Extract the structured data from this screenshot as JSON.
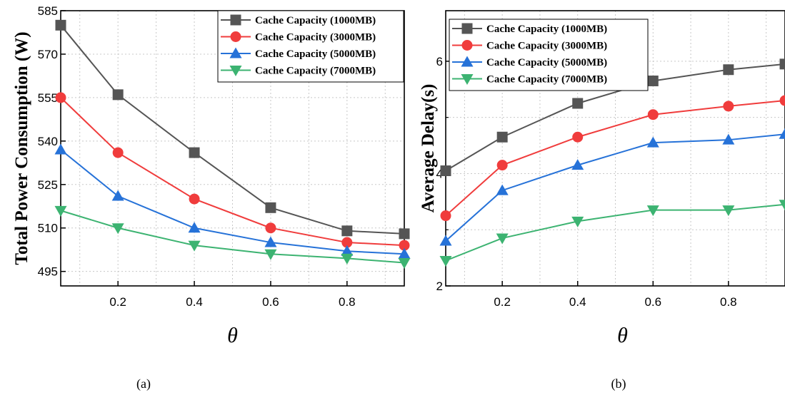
{
  "colors": {
    "s1000": "#555555",
    "s3000": "#f03c3c",
    "s5000": "#2672d8",
    "s7000": "#3cb371"
  },
  "chart_data": [
    {
      "type": "line",
      "caption": "(a)",
      "xlabel": "θ",
      "ylabel": "Total Power Consumption (W)",
      "xlim": [
        0.05,
        0.95
      ],
      "ylim": [
        490,
        585
      ],
      "xticks": [
        0.2,
        0.4,
        0.6,
        0.8
      ],
      "yticks": [
        495,
        510,
        525,
        540,
        555,
        570,
        585
      ],
      "x": [
        0.05,
        0.2,
        0.4,
        0.6,
        0.8,
        0.95
      ],
      "grid": true,
      "legend_position": "top-right",
      "series": [
        {
          "name": "Cache Capacity (1000MB)",
          "marker": "square",
          "color": "#555555",
          "values": [
            580,
            556,
            536,
            517,
            509,
            508
          ]
        },
        {
          "name": "Cache Capacity (3000MB)",
          "marker": "circle",
          "color": "#f03c3c",
          "values": [
            555,
            536,
            520,
            510,
            505,
            504
          ]
        },
        {
          "name": "Cache Capacity (5000MB)",
          "marker": "triangle-up",
          "color": "#2672d8",
          "values": [
            537,
            521,
            510,
            505,
            502,
            501
          ]
        },
        {
          "name": "Cache Capacity (7000MB)",
          "marker": "triangle-down",
          "color": "#3cb371",
          "values": [
            516,
            510,
            504,
            501,
            499.5,
            498
          ]
        }
      ]
    },
    {
      "type": "line",
      "caption": "(b)",
      "xlabel": "θ",
      "ylabel": "Average Delay(s)",
      "xlim": [
        0.05,
        0.95
      ],
      "ylim": [
        2,
        6.9
      ],
      "xticks": [
        0.2,
        0.4,
        0.6,
        0.8
      ],
      "yticks": [
        2,
        4,
        6
      ],
      "minor_yticks": [
        3,
        5
      ],
      "x": [
        0.05,
        0.2,
        0.4,
        0.6,
        0.8,
        0.95
      ],
      "grid": true,
      "legend_position": "top-left",
      "series": [
        {
          "name": "Cache Capacity (1000MB)",
          "marker": "square",
          "color": "#555555",
          "values": [
            4.05,
            4.65,
            5.25,
            5.65,
            5.85,
            5.95
          ]
        },
        {
          "name": "Cache Capacity (3000MB)",
          "marker": "circle",
          "color": "#f03c3c",
          "values": [
            3.25,
            4.15,
            4.65,
            5.05,
            5.2,
            5.3
          ]
        },
        {
          "name": "Cache Capacity (5000MB)",
          "marker": "triangle-up",
          "color": "#2672d8",
          "values": [
            2.8,
            3.7,
            4.15,
            4.55,
            4.6,
            4.7
          ]
        },
        {
          "name": "Cache Capacity (7000MB)",
          "marker": "triangle-down",
          "color": "#3cb371",
          "values": [
            2.45,
            2.85,
            3.15,
            3.35,
            3.35,
            3.45
          ]
        }
      ]
    }
  ]
}
